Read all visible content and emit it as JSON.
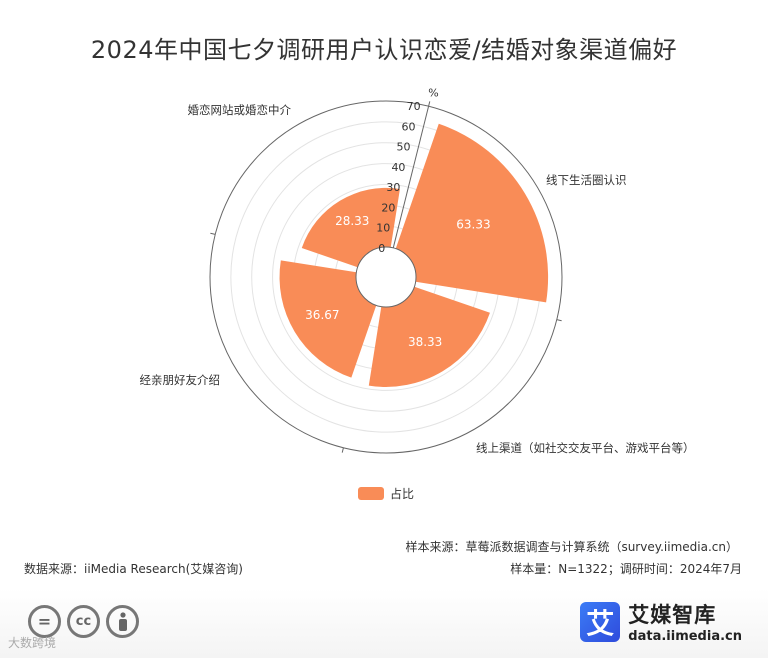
{
  "title": "2024年中国七夕调研用户认识恋爱/结婚对象渠道偏好",
  "chart_data": {
    "type": "polar-bar",
    "title": "2024年中国七夕调研用户认识恋爱/结婚对象渠道偏好",
    "radial_unit": "%",
    "radial_ticks": [
      0,
      10,
      20,
      30,
      40,
      50,
      60,
      70
    ],
    "rlim": [
      0,
      70
    ],
    "categories": [
      "线下生活圈认识",
      "线上渠道（如社交交友平台、游戏平台等）",
      "经亲朋好友介绍",
      "婚恋网站或婚恋中介"
    ],
    "series": [
      {
        "name": "占比",
        "values": [
          63.33,
          38.33,
          36.67,
          28.33
        ],
        "color": "#F98C57"
      }
    ],
    "legend": "bottom-center"
  },
  "source": {
    "sample_source": "样本来源：草莓派数据调查与计算系统（survey.iimedia.cn）",
    "data_source": "数据来源：iiMedia Research(艾媒咨询)",
    "sample_info": "样本量：N=1322；调研时间：2024年7月"
  },
  "footer": {
    "cc_icons": [
      "equals-icon",
      "cc-icon",
      "person-icon"
    ],
    "watermark": "大数跨境",
    "brand_logo_char": "艾",
    "brand_name": "艾媒智库",
    "brand_url": "data.iimedia.cn"
  }
}
